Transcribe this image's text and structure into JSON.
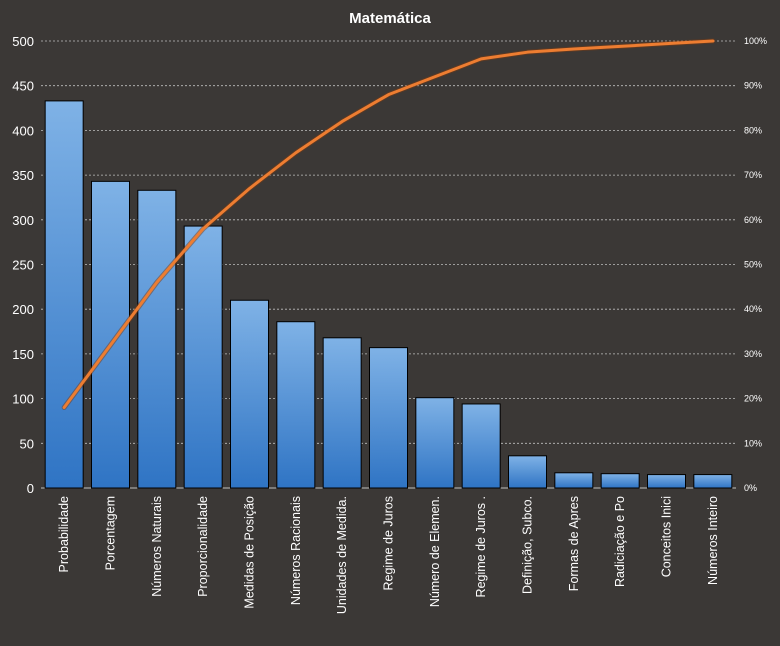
{
  "chart_data": {
    "type": "bar",
    "title": "Matemática",
    "categories": [
      "Probabilidade",
      "Porcentagem",
      "Números Naturais",
      "Proporcionalidade",
      "Medidas de Posição",
      "Números Racionais",
      "Unidades de Medida.",
      "Regime de Juros",
      "Número de Elemen.",
      "Regime de Juros  .",
      "Definição, Subco.",
      "Formas de Apres",
      "Radiciação e Po",
      "Conceitos Inici",
      "Números Inteiro"
    ],
    "series": [
      {
        "type": "bar",
        "axis": "left",
        "values": [
          433,
          343,
          333,
          293,
          210,
          186,
          168,
          157,
          101,
          94,
          36,
          17,
          16,
          15,
          15
        ]
      },
      {
        "type": "line",
        "axis": "right",
        "values": [
          18,
          32,
          46,
          58,
          67,
          75,
          82,
          88,
          92,
          96,
          97.5,
          98.2,
          98.8,
          99.4,
          100
        ]
      }
    ],
    "ylim": [
      0,
      500
    ],
    "yticks": [
      "0",
      "50",
      "100",
      "150",
      "200",
      "250",
      "300",
      "350",
      "400",
      "450",
      "500"
    ],
    "y2lim": [
      0,
      100
    ],
    "y2ticks": [
      "0%",
      "10%",
      "20%",
      "30%",
      "40%",
      "50%",
      "60%",
      "70%",
      "80%",
      "90%",
      "100%"
    ],
    "grid": true,
    "legend": "none",
    "colors": {
      "background": "#3b3836",
      "bar_top": "#7fb2e6",
      "bar_bottom": "#2f74c4",
      "bar_stroke": "#000000",
      "line": "#ed7d31",
      "text": "#ffffff",
      "grid": "#bfbfbf"
    }
  }
}
